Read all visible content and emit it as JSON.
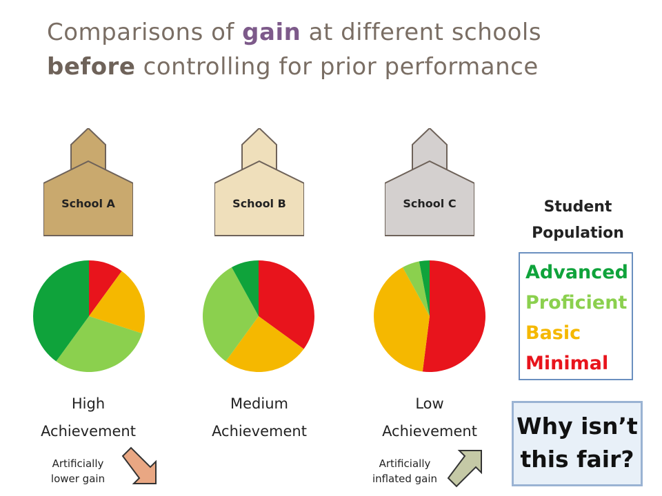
{
  "title": {
    "part1": "Comparisons of ",
    "gain": "gain",
    "part2": " at different schools",
    "before": "before",
    "part3": " controlling for prior performance"
  },
  "schools": [
    {
      "label": "School A",
      "color": "#c9a96e"
    },
    {
      "label": "School B",
      "color": "#efdfbb"
    },
    {
      "label": "School C",
      "color": "#d4d0cf"
    }
  ],
  "legend": {
    "title_line1": "Student",
    "title_line2": "Population",
    "items": [
      {
        "label": "Advanced",
        "color": "#0fa33b"
      },
      {
        "label": "Proficient",
        "color": "#8bd04e"
      },
      {
        "label": "Basic",
        "color": "#f5b800"
      },
      {
        "label": "Minimal",
        "color": "#e8141c"
      }
    ]
  },
  "pies": [
    {
      "achievement_line1": "High",
      "achievement_line2": "Achievement",
      "values": {
        "Minimal": 10,
        "Basic": 20,
        "Proficient": 30,
        "Advanced": 40
      }
    },
    {
      "achievement_line1": "Medium",
      "achievement_line2": "Achievement",
      "values": {
        "Minimal": 35,
        "Basic": 25,
        "Proficient": 32,
        "Advanced": 8
      }
    },
    {
      "achievement_line1": "Low",
      "achievement_line2": "Achievement",
      "values": {
        "Minimal": 52,
        "Basic": 40,
        "Proficient": 5,
        "Advanced": 3
      }
    }
  ],
  "notes": {
    "lower_line1": "Artificially",
    "lower_line2": "lower gain",
    "inflated_line1": "Artificially",
    "inflated_line2": "inflated gain"
  },
  "arrows": {
    "down_color": "#e9a783",
    "up_color": "#c5c9a6"
  },
  "why": {
    "line1": "Why isn’t",
    "line2": "this fair?"
  }
}
